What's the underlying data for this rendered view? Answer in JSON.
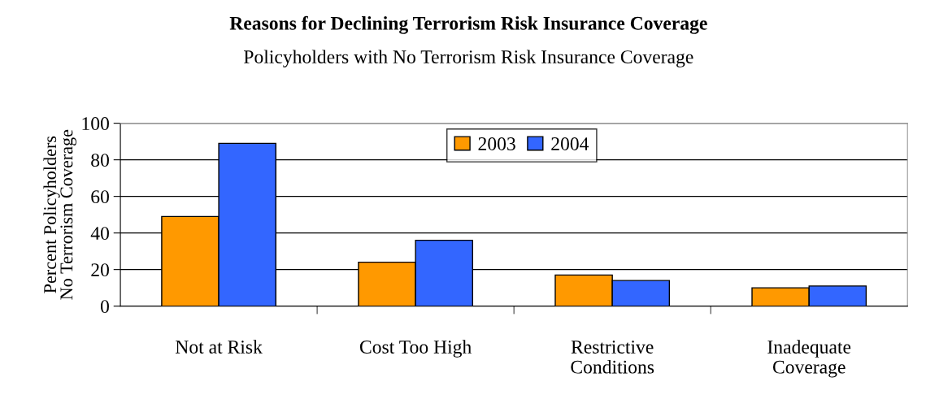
{
  "chart_data": {
    "type": "bar",
    "title": "Reasons for Declining Terrorism Risk Insurance Coverage",
    "subtitle": "Policyholders with No Terrorism Risk Insurance Coverage",
    "ylabel": "Percent Policyholders\nNo Terrorism Coverage",
    "categories": [
      "Not at Risk",
      "Cost Too High",
      "Restrictive\nConditions",
      "Inadequate\nCoverage"
    ],
    "series": [
      {
        "name": "2003",
        "color": "#ff9900",
        "values": [
          49,
          24,
          17,
          10
        ]
      },
      {
        "name": "2004",
        "color": "#3366ff",
        "values": [
          89,
          36,
          14,
          11
        ]
      }
    ],
    "ylim": [
      0,
      100
    ],
    "yticks": [
      0,
      20,
      40,
      60,
      80,
      100
    ],
    "grid": "y",
    "legend": "top"
  }
}
